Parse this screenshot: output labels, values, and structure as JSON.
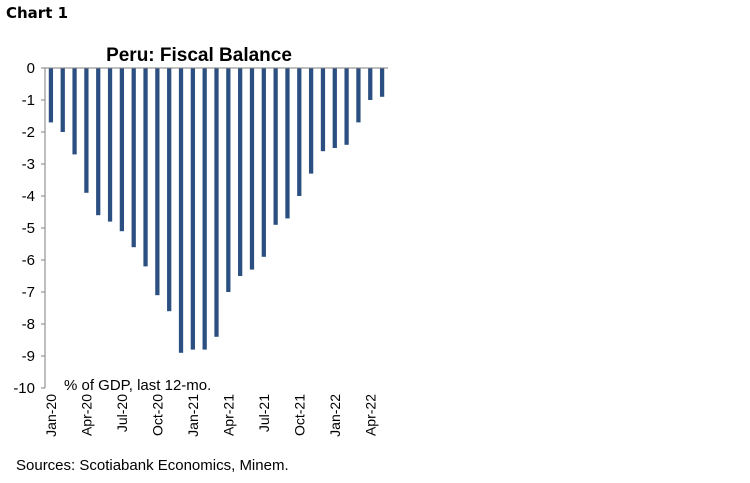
{
  "figure_label": "Chart 1",
  "source": "Sources: Scotiabank Economics, Minem.",
  "chart_data": {
    "type": "bar",
    "title": "Peru: Fiscal Balance",
    "annotation": "% of GDP, last 12-mo.",
    "categories": [
      "Jan-20",
      "Feb-20",
      "Mar-20",
      "Apr-20",
      "May-20",
      "Jun-20",
      "Jul-20",
      "Aug-20",
      "Sep-20",
      "Oct-20",
      "Nov-20",
      "Dec-20",
      "Jan-21",
      "Feb-21",
      "Mar-21",
      "Apr-21",
      "May-21",
      "Jun-21",
      "Jul-21",
      "Aug-21",
      "Sep-21",
      "Oct-21",
      "Nov-21",
      "Dec-21",
      "Jan-22",
      "Feb-22",
      "Mar-22",
      "Apr-22",
      "May-22"
    ],
    "values": [
      -1.7,
      -2.0,
      -2.7,
      -3.9,
      -4.6,
      -4.8,
      -5.1,
      -5.6,
      -6.2,
      -7.1,
      -7.6,
      -8.9,
      -8.8,
      -8.8,
      -8.4,
      -7.0,
      -6.5,
      -6.3,
      -5.9,
      -4.9,
      -4.7,
      -4.0,
      -3.3,
      -2.6,
      -2.5,
      -2.4,
      -1.7,
      -1.0,
      -0.9
    ],
    "tick_labels": [
      "Jan-20",
      "Apr-20",
      "Jul-20",
      "Oct-20",
      "Jan-21",
      "Apr-21",
      "Jul-21",
      "Oct-21",
      "Jan-22",
      "Apr-22"
    ],
    "ylim": [
      -10,
      0
    ],
    "yticks": [
      0,
      -1,
      -2,
      -3,
      -4,
      -5,
      -6,
      -7,
      -8,
      -9,
      -10
    ],
    "xlabel": "",
    "ylabel": "",
    "grid": false,
    "bar_color": "#2b4f81"
  }
}
